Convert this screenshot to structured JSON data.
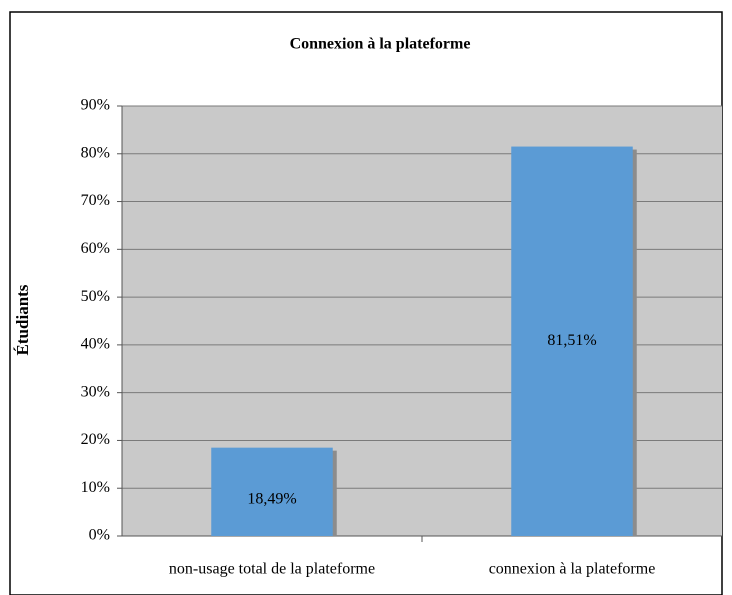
{
  "chart_data": {
    "type": "bar",
    "title": "Connexion à la plateforme",
    "ylabel": "Étudiants",
    "categories": [
      "non-usage total de la plateforme",
      "connexion à la plateforme"
    ],
    "values": [
      18.49,
      81.51
    ],
    "value_labels": [
      "18,49%",
      "81,51%"
    ],
    "color": "#5b9bd5",
    "ylim": [
      0,
      90
    ],
    "yticks": [
      {
        "value": 0,
        "label": "0%"
      },
      {
        "value": 10,
        "label": "10%"
      },
      {
        "value": 20,
        "label": "20%"
      },
      {
        "value": 30,
        "label": "30%"
      },
      {
        "value": 40,
        "label": "40%"
      },
      {
        "value": 50,
        "label": "50%"
      },
      {
        "value": 60,
        "label": "60%"
      },
      {
        "value": 70,
        "label": "70%"
      },
      {
        "value": 80,
        "label": "80%"
      },
      {
        "value": 90,
        "label": "90%"
      }
    ],
    "grid": true
  }
}
